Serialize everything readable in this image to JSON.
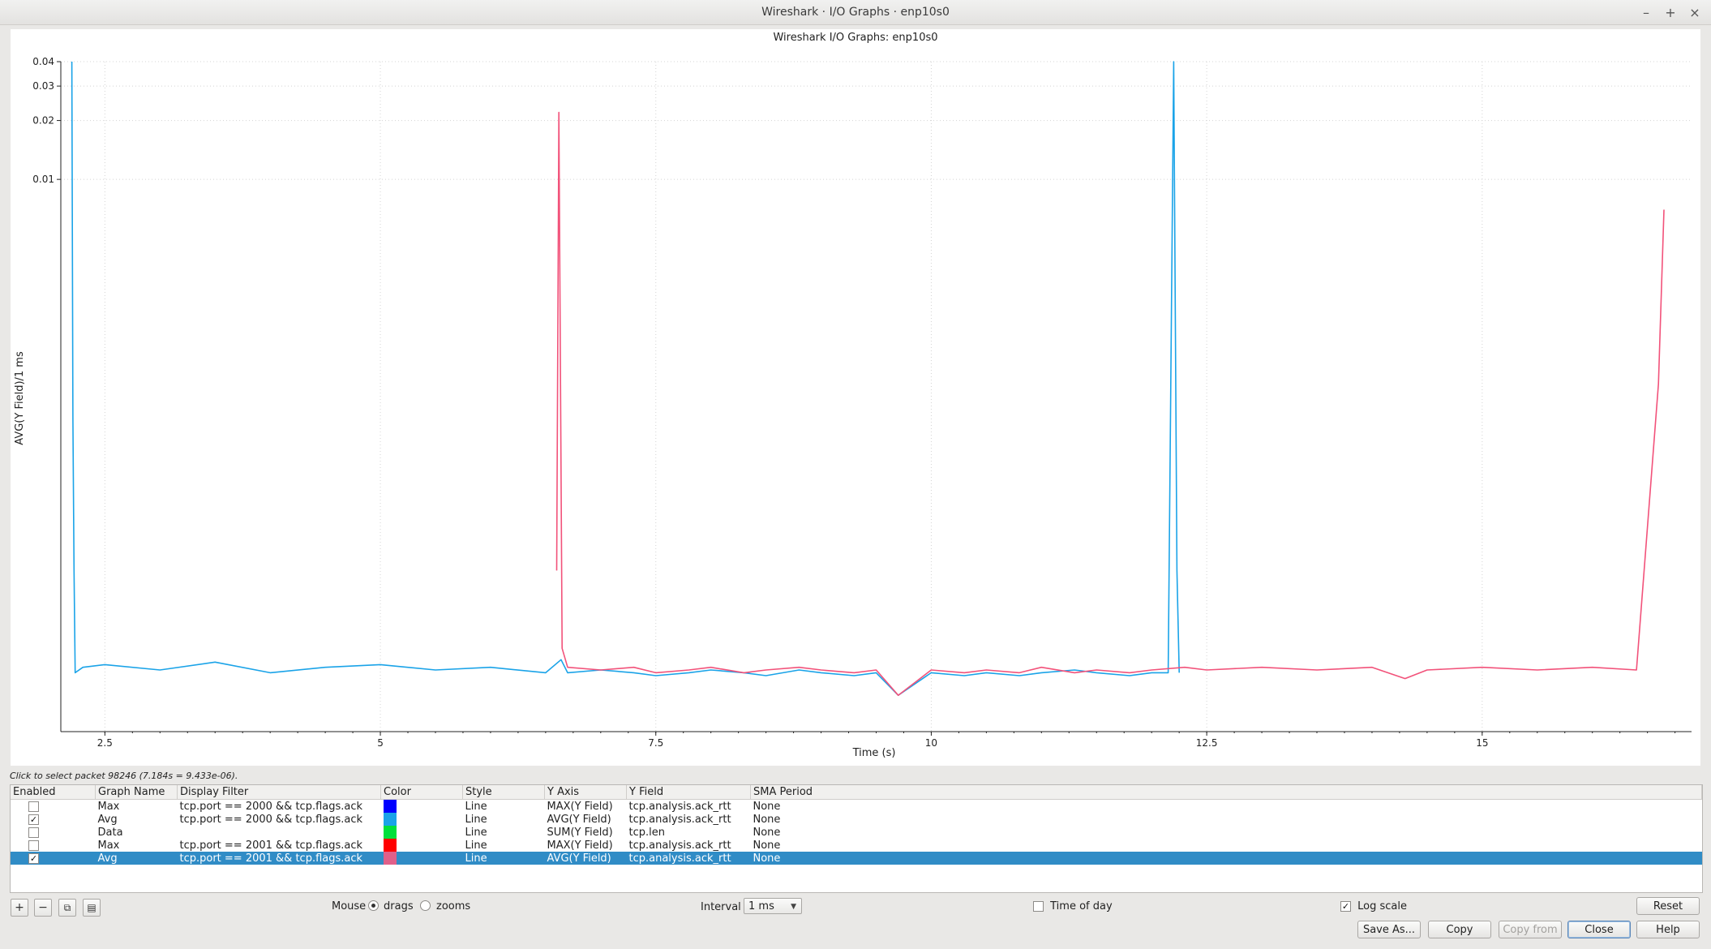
{
  "window": {
    "title": "Wireshark · I/O Graphs · enp10s0",
    "controls": [
      "–",
      "+",
      "×"
    ]
  },
  "chart_data": {
    "type": "line",
    "title": "Wireshark I/O Graphs: enp10s0",
    "xlabel": "Time (s)",
    "ylabel": "AVG(Y Field)/1 ms",
    "xlim": [
      2.1,
      16.9
    ],
    "ylim": [
      1.5e-05,
      0.04
    ],
    "y_scale": "log",
    "grid": true,
    "x_ticks": [
      2.5,
      5,
      7.5,
      10,
      12.5,
      15
    ],
    "x_tick_labels": [
      "2.5",
      "5",
      "7.5",
      "10",
      "12.5",
      "15"
    ],
    "y_ticks": [
      0.01,
      0.02,
      0.03,
      0.04
    ],
    "y_tick_labels": [
      "0.01",
      "0.02",
      "0.03",
      "0.04"
    ],
    "series": [
      {
        "name": "Avg",
        "color": "#1aa3e8",
        "x": [
          2.2,
          2.21,
          2.22,
          2.23,
          2.3,
          2.5,
          3.0,
          3.5,
          4.0,
          4.5,
          5.0,
          5.5,
          6.0,
          6.5,
          6.64,
          6.7,
          7.0,
          7.3,
          7.5,
          7.8,
          8.0,
          8.3,
          8.5,
          8.8,
          9.0,
          9.3,
          9.5,
          9.7,
          10.0,
          10.3,
          10.5,
          10.8,
          11.0,
          11.3,
          11.5,
          11.8,
          12.0,
          12.15,
          12.2,
          12.23,
          12.25
        ],
        "y": [
          0.04,
          0.0006,
          0.0001,
          3e-05,
          3.2e-05,
          3.3e-05,
          3.1e-05,
          3.4e-05,
          3e-05,
          3.2e-05,
          3.3e-05,
          3.1e-05,
          3.2e-05,
          3e-05,
          3.5e-05,
          3e-05,
          3.1e-05,
          3e-05,
          2.9e-05,
          3e-05,
          3.1e-05,
          3e-05,
          2.9e-05,
          3.1e-05,
          3e-05,
          2.9e-05,
          3e-05,
          2.3e-05,
          3e-05,
          2.9e-05,
          3e-05,
          2.9e-05,
          3e-05,
          3.1e-05,
          3e-05,
          2.9e-05,
          3e-05,
          3e-05,
          0.04,
          0.0001,
          3e-05
        ]
      },
      {
        "name": "Avg",
        "color": "#f2527a",
        "x": [
          6.6,
          6.62,
          6.65,
          6.7,
          7.0,
          7.3,
          7.5,
          7.8,
          8.0,
          8.3,
          8.5,
          8.8,
          9.0,
          9.3,
          9.5,
          9.7,
          10.0,
          10.3,
          10.5,
          10.8,
          11.0,
          11.3,
          11.5,
          11.8,
          12.0,
          12.3,
          12.5,
          13.0,
          13.5,
          14.0,
          14.3,
          14.5,
          15.0,
          15.5,
          16.0,
          16.4,
          16.6,
          16.65
        ],
        "y": [
          0.0001,
          0.022,
          4e-05,
          3.2e-05,
          3.1e-05,
          3.2e-05,
          3e-05,
          3.1e-05,
          3.2e-05,
          3e-05,
          3.1e-05,
          3.2e-05,
          3.1e-05,
          3e-05,
          3.1e-05,
          2.3e-05,
          3.1e-05,
          3e-05,
          3.1e-05,
          3e-05,
          3.2e-05,
          3e-05,
          3.1e-05,
          3e-05,
          3.1e-05,
          3.2e-05,
          3.1e-05,
          3.2e-05,
          3.1e-05,
          3.2e-05,
          2.8e-05,
          3.1e-05,
          3.2e-05,
          3.1e-05,
          3.2e-05,
          3.1e-05,
          0.0009,
          0.007
        ]
      }
    ]
  },
  "status_hint": "Click to select packet 98246 (7.184s = 9.433e-06).",
  "graph_table": {
    "headers": [
      "Enabled",
      "Graph Name",
      "Display Filter",
      "Color",
      "Style",
      "Y Axis",
      "Y Field",
      "SMA Period"
    ],
    "rows": [
      {
        "enabled": false,
        "name": "Max",
        "filter": "tcp.port == 2000 && tcp.flags.ack",
        "color": "#0000ff",
        "style": "Line",
        "y_axis": "MAX(Y Field)",
        "y_field": "tcp.analysis.ack_rtt",
        "sma": "None",
        "selected": false
      },
      {
        "enabled": true,
        "name": "Avg",
        "filter": "tcp.port == 2000 && tcp.flags.ack",
        "color": "#1aa3e8",
        "style": "Line",
        "y_axis": "AVG(Y Field)",
        "y_field": "tcp.analysis.ack_rtt",
        "sma": "None",
        "selected": false
      },
      {
        "enabled": false,
        "name": "Data",
        "filter": "",
        "color": "#00e03c",
        "style": "Line",
        "y_axis": "SUM(Y Field)",
        "y_field": "tcp.len",
        "sma": "None",
        "selected": false
      },
      {
        "enabled": false,
        "name": "Max",
        "filter": "tcp.port == 2001 && tcp.flags.ack",
        "color": "#ff0000",
        "style": "Line",
        "y_axis": "MAX(Y Field)",
        "y_field": "tcp.analysis.ack_rtt",
        "sma": "None",
        "selected": false
      },
      {
        "enabled": true,
        "name": "Avg",
        "filter": "tcp.port == 2001 && tcp.flags.ack",
        "color": "#e0608a",
        "style": "Line",
        "y_axis": "AVG(Y Field)",
        "y_field": "tcp.analysis.ack_rtt",
        "sma": "None",
        "selected": true
      }
    ]
  },
  "toolbar": {
    "add": "+",
    "remove": "−",
    "copy_graph": "⧉",
    "clear": "▤"
  },
  "controls": {
    "mouse_label": "Mouse",
    "drags_label": "drags",
    "zooms_label": "zooms",
    "mouse_mode": "drags",
    "interval_label": "Interval",
    "interval_value": "1 ms",
    "time_of_day_label": "Time of day",
    "time_of_day": false,
    "log_scale_label": "Log scale",
    "log_scale": true
  },
  "buttons": {
    "reset": "Reset",
    "save_as": "Save As...",
    "copy": "Copy",
    "copy_from": "Copy from",
    "close": "Close",
    "help": "Help"
  }
}
